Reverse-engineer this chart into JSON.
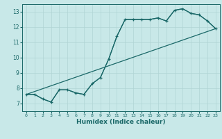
{
  "title": "",
  "xlabel": "Humidex (Indice chaleur)",
  "bg_color": "#c8e8e8",
  "grid_color": "#b0d4d4",
  "line_color": "#1a6868",
  "xlim": [
    -0.5,
    23.5
  ],
  "ylim": [
    6.5,
    13.5
  ],
  "xticks": [
    0,
    1,
    2,
    3,
    4,
    5,
    6,
    7,
    8,
    9,
    10,
    11,
    12,
    13,
    14,
    15,
    16,
    17,
    18,
    19,
    20,
    21,
    22,
    23
  ],
  "yticks": [
    7,
    8,
    9,
    10,
    11,
    12,
    13
  ],
  "series_main": {
    "x": [
      0,
      1,
      2,
      3,
      4,
      5,
      6,
      7,
      8,
      9,
      10,
      11,
      12,
      13,
      14,
      15,
      16,
      17,
      18,
      19,
      20,
      21,
      22,
      23
    ],
    "y": [
      7.6,
      7.6,
      7.3,
      7.1,
      7.9,
      7.9,
      7.7,
      7.6,
      8.3,
      8.7,
      9.9,
      11.4,
      12.5,
      12.5,
      12.5,
      12.5,
      12.6,
      12.4,
      13.1,
      13.2,
      12.9,
      12.8,
      12.4,
      11.9
    ]
  },
  "series_smooth": {
    "x": [
      0,
      1,
      2,
      3,
      4,
      5,
      6,
      7,
      8,
      9,
      10,
      11,
      12,
      13,
      14,
      15,
      16,
      17,
      18,
      19,
      20,
      21,
      22,
      23
    ],
    "y": [
      7.6,
      7.6,
      7.3,
      7.1,
      7.9,
      7.9,
      7.7,
      7.6,
      8.3,
      8.7,
      9.9,
      11.4,
      12.5,
      12.5,
      12.5,
      12.5,
      12.6,
      12.4,
      13.1,
      13.2,
      12.9,
      12.8,
      12.4,
      11.9
    ]
  },
  "series_linear": {
    "x": [
      0,
      23
    ],
    "y": [
      7.6,
      11.9
    ]
  }
}
